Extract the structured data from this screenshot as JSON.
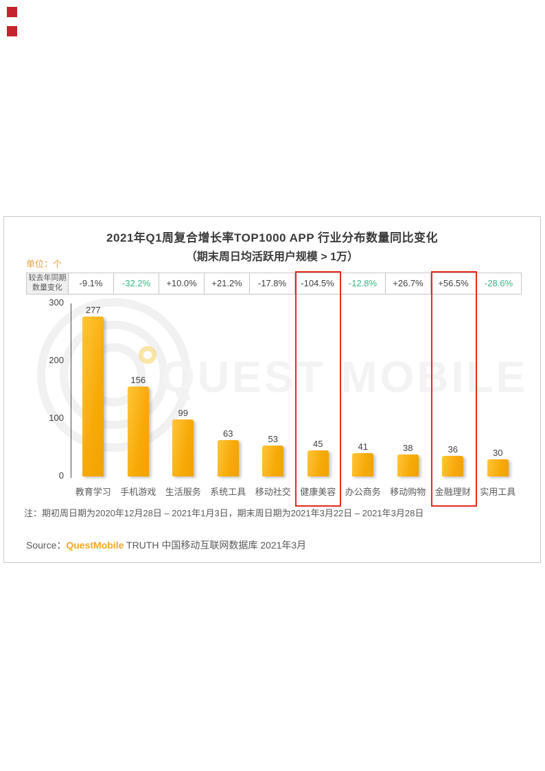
{
  "decorations": {
    "corner_square_color": "#C4242B",
    "watermark_text": "QUEST MOBILE"
  },
  "chart_data": {
    "type": "bar",
    "title": "2021年Q1周复合增长率TOP1000 APP 行业分布数量同比变化",
    "subtitle": "（期末周日均活跃用户规模 > 1万）",
    "unit_label": "单位：个",
    "y_ticks": [
      "300",
      "200",
      "100",
      "0"
    ],
    "ylim": [
      0,
      300
    ],
    "grid": "off",
    "categories": [
      "教育学习",
      "手机游戏",
      "生活服务",
      "系统工具",
      "移动社交",
      "健康美容",
      "办公商务",
      "移动购物",
      "金融理财",
      "实用工具"
    ],
    "values": [
      277,
      156,
      99,
      63,
      53,
      45,
      41,
      38,
      36,
      30
    ],
    "yoy_row_header": "较去年同期数量变化",
    "yoy_changes": [
      "-9.1%",
      "-32.2%",
      "+10.0%",
      "+21.2%",
      "-17.8%",
      "-104.5%",
      "-12.8%",
      "+26.7%",
      "+56.5%",
      "-28.6%"
    ],
    "yoy_green_indexes": [
      1,
      6,
      9
    ],
    "highlight_indexes": [
      5,
      8
    ],
    "highlighted_categories": [
      "健康美容",
      "金融理财"
    ],
    "bar_color_top": "#FFC335",
    "bar_color_main": "#F6AA08",
    "highlight_box_color": "#E02A1D",
    "green_text_color": "#36B87E"
  },
  "note": "注：期初周日期为2020年12月28日 – 2021年1月3日，期末周日期为2021年3月22日 – 2021年3月28日",
  "source": {
    "label": "Source：",
    "brand": "QuestMobile",
    "rest": " TRUTH 中国移动互联网数据库 2021年3月"
  }
}
